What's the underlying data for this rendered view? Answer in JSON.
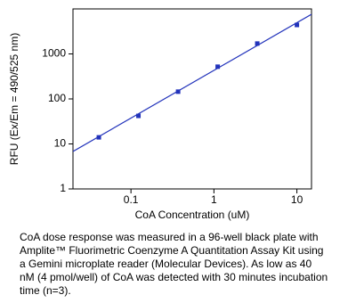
{
  "chart_data": {
    "type": "scatter",
    "log_x": true,
    "log_y": true,
    "x_label": "CoA Concentration (uM)",
    "y_label": "RFU (Ex/Em = 490/525 nm)",
    "xlim": [
      0.02,
      15
    ],
    "ylim": [
      1,
      10000
    ],
    "xticks": [
      0.1,
      1,
      10
    ],
    "yticks": [
      1,
      10,
      100,
      1000
    ],
    "series": [
      {
        "x": [
          0.041,
          0.123,
          0.37,
          1.11,
          3.33,
          10
        ],
        "values": [
          14,
          42,
          145,
          520,
          1700,
          4400
        ],
        "color": "#2233bb",
        "marker": "square"
      },
      {
        "x": [
          0.02,
          15
        ],
        "values": [
          6.8,
          7600
        ],
        "color": "#2233bb",
        "marker": "line"
      }
    ],
    "caption": [
      "CoA dose response was measured in a 96-well black plate with",
      "Amplite™ Fluorimetric Coenzyme A Quantitation Assay Kit using",
      "a Gemini microplate reader (Molecular Devices). As low as 40",
      "nM (4 pmol/well) of CoA was detected with 30 minutes incubation",
      "time (n=3)."
    ]
  }
}
